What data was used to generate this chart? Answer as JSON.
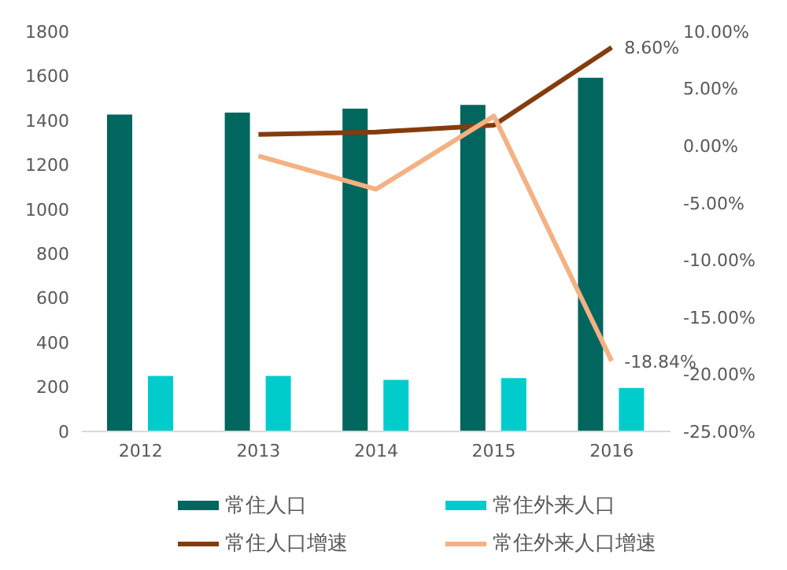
{
  "chart_data": {
    "type": "bar",
    "categories": [
      "2012",
      "2013",
      "2014",
      "2015",
      "2016"
    ],
    "series": [
      {
        "name": "常住人口",
        "color": "#00665e",
        "values": [
          1426,
          1435,
          1453,
          1470,
          1592
        ]
      },
      {
        "name": "常住外来人口",
        "color": "#00cccc",
        "values": [
          250,
          250,
          232,
          240,
          196
        ]
      },
      {
        "name": "常住人口增速",
        "type": "line",
        "axis": "y2",
        "color": "#843c0c",
        "values": [
          null,
          1.0,
          1.2,
          1.8,
          8.6
        ],
        "value_labels": [
          null,
          null,
          null,
          null,
          "8.60%"
        ]
      },
      {
        "name": "常住外来人口增速",
        "type": "line",
        "axis": "y2",
        "color": "#f4b183",
        "values": [
          null,
          -0.9,
          -3.8,
          2.6,
          -18.84
        ],
        "value_labels": [
          null,
          null,
          null,
          null,
          "-18.84%"
        ]
      }
    ],
    "ylim": [
      0,
      1800
    ],
    "yticks": [
      0,
      200,
      400,
      600,
      800,
      1000,
      1200,
      1400,
      1600,
      1800
    ],
    "y2lim": [
      -25,
      10
    ],
    "y2ticks": [
      {
        "value": -25,
        "label": "-25.00%"
      },
      {
        "value": -20,
        "label": "-20.00%"
      },
      {
        "value": -15,
        "label": "-15.00%"
      },
      {
        "value": -10,
        "label": "-10.00%"
      },
      {
        "value": -5,
        "label": "-5.00%"
      },
      {
        "value": 0,
        "label": "0.00%"
      },
      {
        "value": 5,
        "label": "5.00%"
      },
      {
        "value": 10,
        "label": "10.00%"
      }
    ],
    "legend": "bottom",
    "grid": false,
    "marker": "none"
  }
}
